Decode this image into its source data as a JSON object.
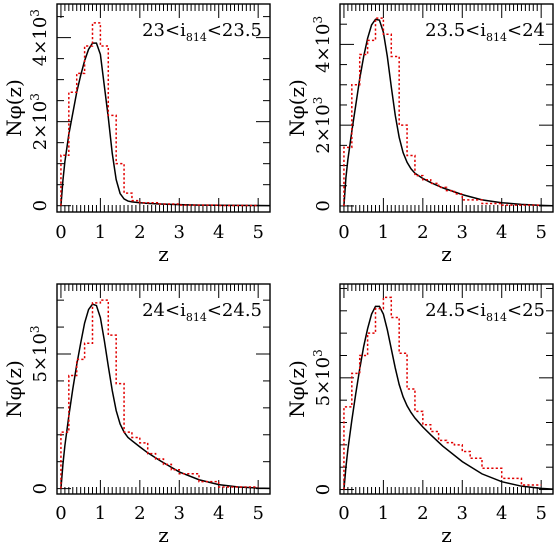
{
  "chart_data": [
    {
      "type": "line",
      "annotation": {
        "pre": "23<i",
        "sub": "814",
        "post": "<23.5"
      },
      "xlabel": "z",
      "ylabel": "Nφ(z)",
      "xlim": [
        -0.1,
        5.3
      ],
      "ylim": [
        -150,
        4800
      ],
      "xticks": [
        0,
        1,
        2,
        3,
        4,
        5
      ],
      "yticks": [
        {
          "value": 0,
          "mant": "0",
          "exp": ""
        },
        {
          "value": 2000,
          "mant": "2×10",
          "exp": "3"
        },
        {
          "value": 4000,
          "mant": "4×10",
          "exp": "3"
        }
      ],
      "series": [
        {
          "style": "solid-black",
          "x": [
            0,
            0.05,
            0.1,
            0.2,
            0.3,
            0.4,
            0.5,
            0.6,
            0.7,
            0.8,
            0.9,
            1.0,
            1.1,
            1.2,
            1.3,
            1.4,
            1.5,
            1.6,
            1.7,
            1.8,
            2.0,
            2.2,
            2.5,
            3.0,
            3.5,
            4.0,
            5.0,
            5.3
          ],
          "y": [
            0,
            600,
            1050,
            1700,
            2200,
            2700,
            3100,
            3450,
            3720,
            3870,
            3870,
            3600,
            2850,
            2100,
            1250,
            620,
            290,
            160,
            110,
            90,
            70,
            55,
            40,
            25,
            15,
            10,
            5,
            3
          ]
        },
        {
          "style": "dotted-red-histogram",
          "bin_edges": [
            0,
            0.2,
            0.4,
            0.6,
            0.8,
            1.0,
            1.2,
            1.4,
            1.6,
            1.8,
            2.0,
            2.5,
            3.0,
            4.0,
            5.0
          ],
          "values": [
            1200,
            2700,
            3150,
            3800,
            4350,
            3800,
            2150,
            1000,
            300,
            120,
            70,
            40,
            15,
            5
          ]
        }
      ]
    },
    {
      "type": "line",
      "annotation": {
        "pre": "23.5<i",
        "sub": "814",
        "post": "<24"
      },
      "xlabel": "z",
      "ylabel": "Nφ(z)",
      "xlim": [
        -0.1,
        5.3
      ],
      "ylim": [
        -150,
        5000
      ],
      "xticks": [
        0,
        1,
        2,
        3,
        4,
        5
      ],
      "yticks": [
        {
          "value": 0,
          "mant": "0",
          "exp": ""
        },
        {
          "value": 2000,
          "mant": "2×10",
          "exp": "3"
        },
        {
          "value": 4000,
          "mant": "4×10",
          "exp": "3"
        }
      ],
      "series": [
        {
          "style": "solid-black",
          "x": [
            0,
            0.05,
            0.1,
            0.2,
            0.3,
            0.4,
            0.5,
            0.6,
            0.7,
            0.8,
            0.9,
            1.0,
            1.1,
            1.2,
            1.3,
            1.4,
            1.5,
            1.6,
            1.7,
            1.8,
            2.0,
            2.2,
            2.5,
            3.0,
            3.5,
            4.0,
            4.5,
            5.0,
            5.3
          ],
          "y": [
            0,
            700,
            1150,
            1850,
            2500,
            3150,
            3700,
            4150,
            4480,
            4620,
            4600,
            4300,
            3700,
            2950,
            2250,
            1700,
            1320,
            1080,
            920,
            810,
            680,
            580,
            450,
            280,
            150,
            80,
            40,
            15,
            5
          ]
        },
        {
          "style": "dotted-red-histogram",
          "bin_edges": [
            0,
            0.2,
            0.4,
            0.6,
            0.8,
            1.0,
            1.2,
            1.4,
            1.6,
            1.8,
            2.0,
            2.2,
            2.4,
            2.6,
            2.8,
            3.0,
            3.5,
            4.0,
            5.0
          ],
          "values": [
            1450,
            3000,
            3750,
            4100,
            4650,
            4250,
            3700,
            2000,
            1250,
            750,
            650,
            560,
            460,
            380,
            300,
            150,
            60,
            20
          ]
        }
      ]
    },
    {
      "type": "line",
      "annotation": {
        "pre": "24<i",
        "sub": "814",
        "post": "<24.5"
      },
      "xlabel": "z",
      "ylabel": "Nφ(z)",
      "xlim": [
        -0.1,
        5.3
      ],
      "ylim": [
        -200,
        7600
      ],
      "xticks": [
        0,
        1,
        2,
        3,
        4,
        5
      ],
      "yticks": [
        {
          "value": 0,
          "mant": "0",
          "exp": ""
        },
        {
          "value": 5000,
          "mant": "5×10",
          "exp": "3"
        }
      ],
      "series": [
        {
          "style": "solid-black",
          "x": [
            0,
            0.05,
            0.1,
            0.2,
            0.3,
            0.4,
            0.5,
            0.6,
            0.7,
            0.8,
            0.9,
            1.0,
            1.1,
            1.2,
            1.3,
            1.4,
            1.5,
            1.6,
            1.7,
            1.8,
            2.0,
            2.2,
            2.5,
            3.0,
            3.5,
            4.0,
            4.5,
            5.0,
            5.3
          ],
          "y": [
            0,
            900,
            1600,
            2700,
            3700,
            4600,
            5400,
            6150,
            6650,
            6850,
            6800,
            6350,
            5500,
            4550,
            3650,
            2900,
            2400,
            2100,
            1900,
            1780,
            1550,
            1330,
            1050,
            620,
            330,
            150,
            60,
            20,
            8
          ]
        },
        {
          "style": "dotted-red-histogram",
          "bin_edges": [
            0,
            0.2,
            0.4,
            0.6,
            0.8,
            1.0,
            1.2,
            1.4,
            1.6,
            1.8,
            2.0,
            2.2,
            2.4,
            2.6,
            2.8,
            3.0,
            3.5,
            4.0,
            5.0
          ],
          "values": [
            2100,
            4200,
            4800,
            5400,
            6900,
            7000,
            5700,
            3900,
            2100,
            1900,
            1700,
            1300,
            1100,
            900,
            700,
            550,
            260,
            60
          ]
        }
      ]
    },
    {
      "type": "line",
      "annotation": {
        "pre": "24.5<i",
        "sub": "814",
        "post": "<25"
      },
      "xlabel": "z",
      "ylabel": "Nφ(z)",
      "xlim": [
        -0.1,
        5.3
      ],
      "ylim": [
        -200,
        9200
      ],
      "xticks": [
        0,
        1,
        2,
        3,
        4,
        5
      ],
      "yticks": [
        {
          "value": 0,
          "mant": "0",
          "exp": ""
        },
        {
          "value": 5000,
          "mant": "5×10",
          "exp": "3"
        }
      ],
      "series": [
        {
          "style": "solid-black",
          "x": [
            0,
            0.05,
            0.1,
            0.2,
            0.3,
            0.4,
            0.5,
            0.6,
            0.7,
            0.8,
            0.9,
            1.0,
            1.1,
            1.2,
            1.3,
            1.4,
            1.5,
            1.6,
            1.7,
            1.8,
            2.0,
            2.2,
            2.5,
            3.0,
            3.5,
            4.0,
            4.5,
            5.0,
            5.3
          ],
          "y": [
            0,
            1000,
            1800,
            3100,
            4300,
            5400,
            6400,
            7200,
            7850,
            8200,
            8200,
            7850,
            7150,
            6300,
            5450,
            4700,
            4150,
            3750,
            3450,
            3200,
            2800,
            2450,
            1950,
            1250,
            700,
            350,
            150,
            50,
            20
          ]
        },
        {
          "style": "dotted-red-histogram",
          "bin_edges": [
            0,
            0.2,
            0.4,
            0.6,
            0.8,
            1.0,
            1.2,
            1.4,
            1.6,
            1.8,
            2.0,
            2.2,
            2.4,
            2.6,
            2.8,
            3.0,
            3.2,
            3.5,
            4.0,
            4.5,
            5.0
          ],
          "values": [
            3700,
            5200,
            6000,
            7000,
            8100,
            8600,
            7700,
            6100,
            4500,
            3500,
            2900,
            2600,
            2200,
            2100,
            2000,
            1700,
            1400,
            950,
            500,
            200
          ]
        }
      ]
    }
  ]
}
